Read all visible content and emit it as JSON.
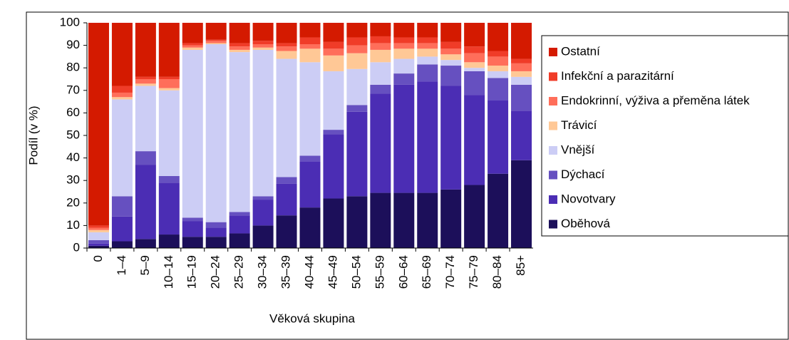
{
  "chart_data": {
    "type": "stacked_bar",
    "categories": [
      "0",
      "1–4",
      "5–9",
      "10–14",
      "15–19",
      "20–24",
      "25–29",
      "30–34",
      "35–39",
      "40–44",
      "45–49",
      "50–54",
      "55–59",
      "60–64",
      "65–69",
      "70–74",
      "75–79",
      "80–84",
      "85+"
    ],
    "series": [
      {
        "name": "Oběhová",
        "color": "#1c0f5a",
        "values": [
          1,
          3,
          4,
          6,
          5,
          5,
          6.5,
          10,
          14.5,
          18,
          22,
          23,
          24.5,
          24.5,
          24.5,
          26,
          28,
          33,
          39
        ]
      },
      {
        "name": "Novotvary",
        "color": "#4b2db4",
        "values": [
          1,
          11,
          33,
          23,
          7,
          4,
          8,
          11.5,
          14,
          20.5,
          28.5,
          37.5,
          44,
          48,
          49.5,
          46,
          40,
          32.5,
          22
        ]
      },
      {
        "name": "Dýchací",
        "color": "#6650c0",
        "values": [
          1.5,
          9,
          6,
          3,
          1.5,
          2.5,
          1.5,
          1.5,
          3,
          2.5,
          2,
          3,
          4,
          5,
          7.5,
          9,
          10.5,
          10,
          11.5
        ]
      },
      {
        "name": "Vnější",
        "color": "#cccdf5",
        "values": [
          3.5,
          43,
          29,
          38,
          74.5,
          79,
          71,
          65,
          52.5,
          41.5,
          26,
          16,
          10,
          6.5,
          3.5,
          2.5,
          1.5,
          3,
          3.5
        ]
      },
      {
        "name": "Trávicí",
        "color": "#ffc896",
        "values": [
          1,
          1,
          1,
          1,
          1,
          0.5,
          1,
          1,
          3.5,
          6,
          7,
          7,
          5.5,
          4.5,
          3.5,
          2.5,
          2.5,
          2.5,
          2.5
        ]
      },
      {
        "name": "Endokrinní, výživa a přeměna látek",
        "color": "#ff6e5a",
        "values": [
          1,
          2,
          2,
          4,
          1,
          1,
          1.5,
          1.5,
          2,
          2,
          3,
          3.5,
          3,
          2.5,
          2.5,
          2.5,
          4,
          4,
          3.5
        ]
      },
      {
        "name": "Infekční a parazitární",
        "color": "#f03c28",
        "values": [
          1,
          3,
          1,
          1,
          1,
          0.5,
          1.5,
          1.5,
          1.5,
          3,
          3,
          3.5,
          3,
          2.5,
          2.5,
          3,
          3,
          2.5,
          2
        ]
      },
      {
        "name": "Ostatní",
        "color": "#d41a00",
        "values": [
          90,
          28,
          24,
          24,
          9,
          7.5,
          9,
          8,
          9,
          6.5,
          8.5,
          6.5,
          6,
          6.5,
          6.5,
          8.5,
          10.5,
          12.5,
          16
        ]
      }
    ],
    "x_label": "Věková skupina",
    "y_label": "Podíl (v %)",
    "ylim": [
      0,
      100
    ],
    "yticks": [
      0,
      10,
      20,
      30,
      40,
      50,
      60,
      70,
      80,
      90,
      100
    ],
    "legend": "right"
  }
}
